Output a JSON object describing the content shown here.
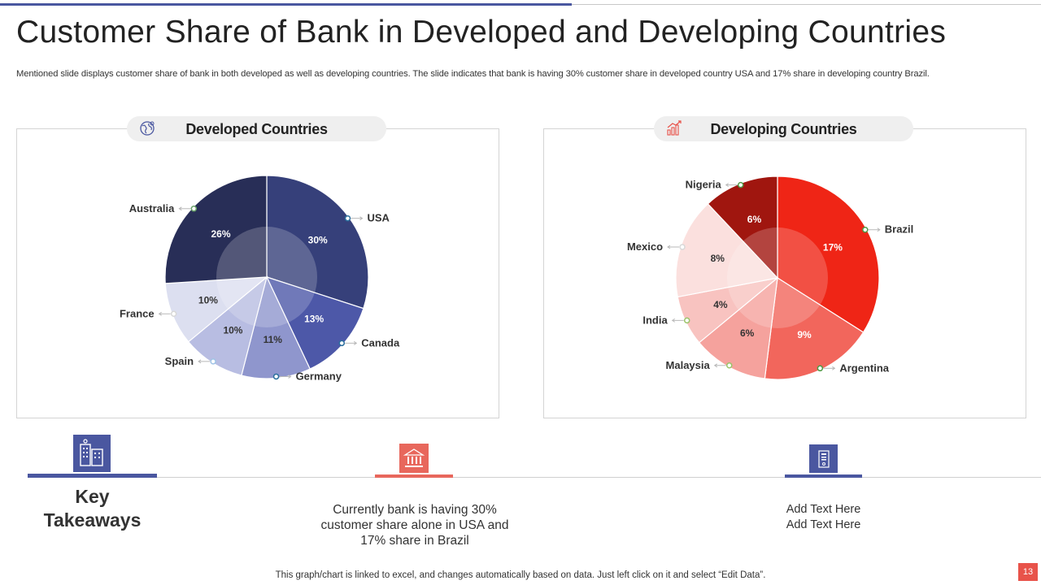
{
  "title": "Customer Share of Bank in Developed and Developing Countries",
  "subtitle": "Mentioned slide displays customer share of bank in both developed as well as developing countries. The slide indicates that bank is having 30% customer share in developed country USA and 17% share in developing country Brazil.",
  "chart_data": [
    {
      "type": "pie",
      "title": "Developed Countries",
      "icon": "globe-icon",
      "categories": [
        "USA",
        "Canada",
        "Germany",
        "Spain",
        "France",
        "Australia"
      ],
      "values": [
        30,
        13,
        11,
        10,
        10,
        26
      ],
      "value_labels": [
        "30%",
        "13%",
        "11%",
        "10%",
        "10%",
        "26%"
      ],
      "colors": [
        "#36407a",
        "#4d58a8",
        "#8f96cd",
        "#b8bde2",
        "#dcdff0",
        "#282e57"
      ],
      "label_colors": [
        "#ffffff",
        "#ffffff",
        "#333333",
        "#333333",
        "#333333",
        "#ffffff"
      ],
      "marker_colors": [
        "#2b6f9e",
        "#2b6f9e",
        "#2b6f9e",
        "#9fc3e6",
        "#d8d8d8",
        "#6aa36a"
      ]
    },
    {
      "type": "pie",
      "title": "Developing Countries",
      "icon": "chart-growth-icon",
      "categories": [
        "Brazil",
        "Argentina",
        "Malaysia",
        "India",
        "Mexico",
        "Nigeria"
      ],
      "values": [
        17,
        9,
        6,
        4,
        8,
        6
      ],
      "value_labels": [
        "17%",
        "9%",
        "6%",
        "4%",
        "8%",
        "6%"
      ],
      "colors": [
        "#ef2516",
        "#f2665c",
        "#f5a29d",
        "#f8c3c0",
        "#fbe0de",
        "#a0160f"
      ],
      "label_colors": [
        "#ffffff",
        "#ffffff",
        "#333333",
        "#333333",
        "#333333",
        "#ffffff"
      ],
      "marker_colors": [
        "#4f9a45",
        "#4f9a45",
        "#9ac46a",
        "#9ac46a",
        "#d8d8d8",
        "#4f9a45"
      ]
    }
  ],
  "takeaways": {
    "heading_line1": "Key",
    "heading_line2": "Takeaways",
    "text1": "Currently  bank is having 30% customer share alone in USA and 17% share in Brazil",
    "text2_line1": "Add Text Here",
    "text2_line2": "Add Text Here",
    "accent_blue": "#4a57a0",
    "accent_red": "#e8675c"
  },
  "footer_note": "This graph/chart is linked to excel,  and changes automatically based on data. Just left click on it and select “Edit Data”.",
  "page_number": "13"
}
